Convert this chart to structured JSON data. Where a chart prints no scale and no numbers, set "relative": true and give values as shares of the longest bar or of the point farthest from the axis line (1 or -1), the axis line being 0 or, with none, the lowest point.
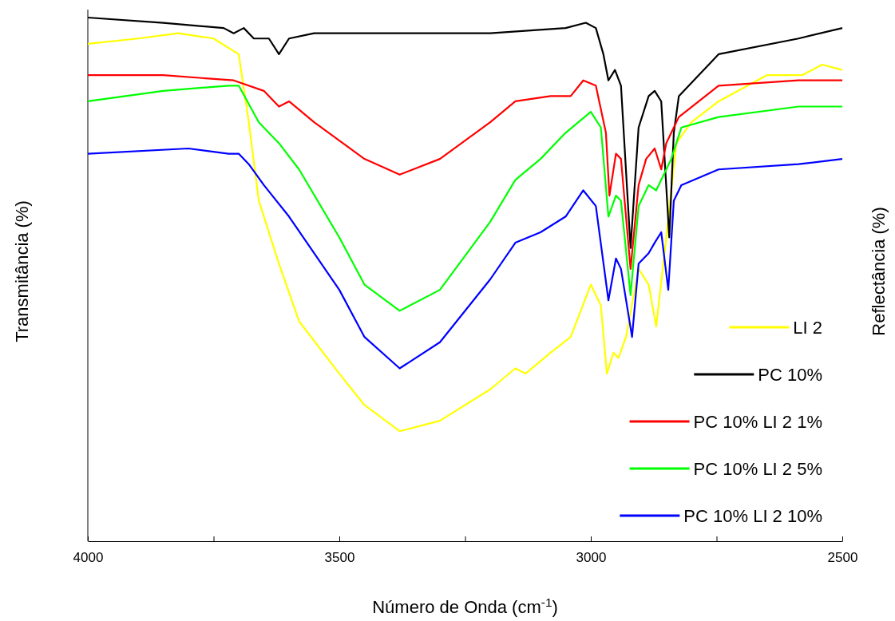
{
  "chart_data": {
    "type": "line",
    "relative": true,
    "xlabel": "Número de Onda (cm$^{-1}$)",
    "ylabel": "Transmitância (%)",
    "y2label": "Reflectância (%)",
    "xlim": [
      4000,
      2500
    ],
    "xticks": [
      4000,
      {
        "value": 3750,
        "label": null
      },
      3500,
      {
        "value": 3250,
        "label": null
      },
      3000,
      {
        "value": 2750,
        "label": null
      },
      2500
    ],
    "legend": "bottom right",
    "grid": false,
    "marker": "none",
    "line_style": "solid",
    "series": [
      {
        "name": "LI 2",
        "color": "#ffff00",
        "x": [
          4000,
          3900,
          3820,
          3750,
          3700,
          3680,
          3660,
          3620,
          3580,
          3500,
          3450,
          3380,
          3300,
          3200,
          3150,
          3130,
          3080,
          3040,
          3000,
          2980,
          2968,
          2955,
          2945,
          2930,
          2905,
          2885,
          2870,
          2850,
          2830,
          2800,
          2746,
          2650,
          2580,
          2540,
          2500
        ],
        "values": [
          0.95,
          0.96,
          0.97,
          0.96,
          0.93,
          0.8,
          0.65,
          0.53,
          0.42,
          0.32,
          0.26,
          0.21,
          0.23,
          0.29,
          0.33,
          0.32,
          0.36,
          0.39,
          0.49,
          0.45,
          0.32,
          0.36,
          0.35,
          0.39,
          0.52,
          0.49,
          0.41,
          0.58,
          0.76,
          0.8,
          0.84,
          0.89,
          0.89,
          0.91,
          0.9
        ]
      },
      {
        "name": "PC 10%",
        "color": "#000000",
        "x": [
          4000,
          3850,
          3730,
          3710,
          3690,
          3670,
          3640,
          3620,
          3600,
          3550,
          3400,
          3200,
          3050,
          3010,
          2990,
          2975,
          2965,
          2952,
          2940,
          2921,
          2905,
          2885,
          2873,
          2860,
          2844,
          2835,
          2825,
          2746,
          2587,
          2500
        ],
        "values": [
          1.0,
          0.99,
          0.98,
          0.97,
          0.98,
          0.96,
          0.96,
          0.93,
          0.96,
          0.97,
          0.97,
          0.97,
          0.98,
          0.99,
          0.98,
          0.93,
          0.88,
          0.9,
          0.87,
          0.56,
          0.79,
          0.85,
          0.86,
          0.84,
          0.58,
          0.78,
          0.85,
          0.93,
          0.96,
          0.98
        ]
      },
      {
        "name": "PC 10% LI 2 1%",
        "color": "#ff0000",
        "x": [
          4000,
          3850,
          3710,
          3650,
          3620,
          3600,
          3550,
          3450,
          3380,
          3300,
          3200,
          3150,
          3080,
          3040,
          3015,
          2990,
          2970,
          2963,
          2950,
          2940,
          2921,
          2905,
          2890,
          2873,
          2860,
          2850,
          2840,
          2825,
          2746,
          2587,
          2500
        ],
        "values": [
          0.89,
          0.89,
          0.88,
          0.86,
          0.83,
          0.84,
          0.8,
          0.73,
          0.7,
          0.73,
          0.8,
          0.84,
          0.85,
          0.85,
          0.88,
          0.87,
          0.78,
          0.66,
          0.74,
          0.73,
          0.52,
          0.68,
          0.73,
          0.75,
          0.71,
          0.76,
          0.78,
          0.81,
          0.87,
          0.88,
          0.88
        ]
      },
      {
        "name": "PC 10% LI 2 5%",
        "color": "#00ff00",
        "x": [
          4000,
          3850,
          3720,
          3700,
          3660,
          3620,
          3580,
          3500,
          3450,
          3380,
          3300,
          3200,
          3150,
          3100,
          3050,
          3000,
          2980,
          2965,
          2950,
          2940,
          2921,
          2905,
          2885,
          2870,
          2855,
          2840,
          2820,
          2746,
          2587,
          2500
        ],
        "values": [
          0.84,
          0.86,
          0.87,
          0.87,
          0.8,
          0.76,
          0.71,
          0.58,
          0.49,
          0.44,
          0.48,
          0.61,
          0.69,
          0.73,
          0.78,
          0.82,
          0.79,
          0.62,
          0.66,
          0.65,
          0.47,
          0.64,
          0.68,
          0.67,
          0.7,
          0.73,
          0.79,
          0.81,
          0.83,
          0.83
        ]
      },
      {
        "name": "PC 10% LI 2 10%",
        "color": "#0000ff",
        "x": [
          4000,
          3800,
          3720,
          3700,
          3680,
          3650,
          3600,
          3500,
          3450,
          3380,
          3300,
          3200,
          3150,
          3100,
          3050,
          3015,
          2990,
          2965,
          2950,
          2940,
          2918,
          2905,
          2885,
          2873,
          2860,
          2846,
          2835,
          2820,
          2746,
          2587,
          2500
        ],
        "values": [
          0.74,
          0.75,
          0.74,
          0.74,
          0.72,
          0.68,
          0.62,
          0.48,
          0.39,
          0.33,
          0.38,
          0.5,
          0.57,
          0.59,
          0.62,
          0.67,
          0.64,
          0.46,
          0.54,
          0.52,
          0.39,
          0.53,
          0.55,
          0.57,
          0.59,
          0.48,
          0.65,
          0.68,
          0.71,
          0.72,
          0.73
        ]
      }
    ]
  }
}
